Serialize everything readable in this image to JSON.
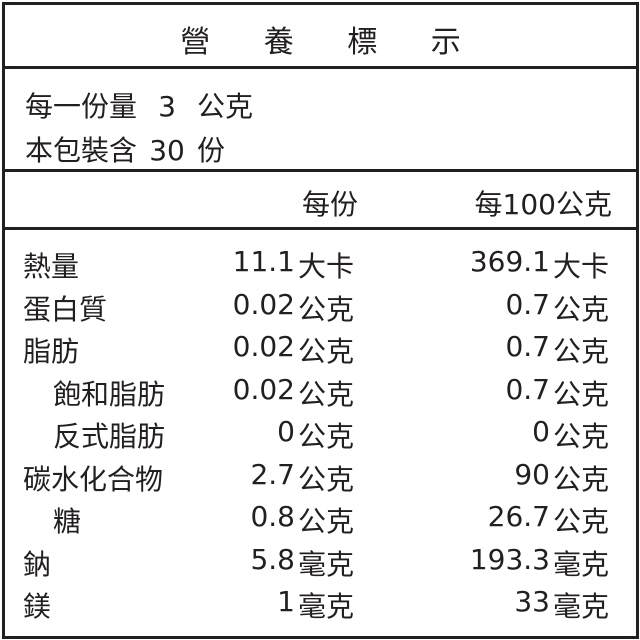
{
  "title": "營 養 標 示",
  "serving": {
    "size_label": "每一份量",
    "size_value": "3",
    "size_unit": "公克",
    "count_label": "本包裝含",
    "count_value": "30",
    "count_unit": "份"
  },
  "columns": {
    "per_serving": "每份",
    "per_100g": "每100公克"
  },
  "rows": [
    {
      "name": "熱量",
      "indent": false,
      "v1": "11.1",
      "u1": "大卡",
      "v2": "369.1",
      "u2": "大卡"
    },
    {
      "name": "蛋白質",
      "indent": false,
      "v1": "0.02",
      "u1": "公克",
      "v2": "0.7",
      "u2": "公克"
    },
    {
      "name": "脂肪",
      "indent": false,
      "v1": "0.02",
      "u1": "公克",
      "v2": "0.7",
      "u2": "公克"
    },
    {
      "name": "飽和脂肪",
      "indent": true,
      "v1": "0.02",
      "u1": "公克",
      "v2": "0.7",
      "u2": "公克"
    },
    {
      "name": "反式脂肪",
      "indent": true,
      "v1": "0",
      "u1": "公克",
      "v2": "0",
      "u2": "公克"
    },
    {
      "name": "碳水化合物",
      "indent": false,
      "v1": "2.7",
      "u1": "公克",
      "v2": "90",
      "u2": "公克"
    },
    {
      "name": "糖",
      "indent": true,
      "v1": "0.8",
      "u1": "公克",
      "v2": "26.7",
      "u2": "公克"
    },
    {
      "name": "鈉",
      "indent": false,
      "v1": "5.8",
      "u1": "毫克",
      "v2": "193.3",
      "u2": "毫克"
    },
    {
      "name": "鎂",
      "indent": false,
      "v1": "1",
      "u1": "毫克",
      "v2": "33",
      "u2": "毫克"
    }
  ]
}
